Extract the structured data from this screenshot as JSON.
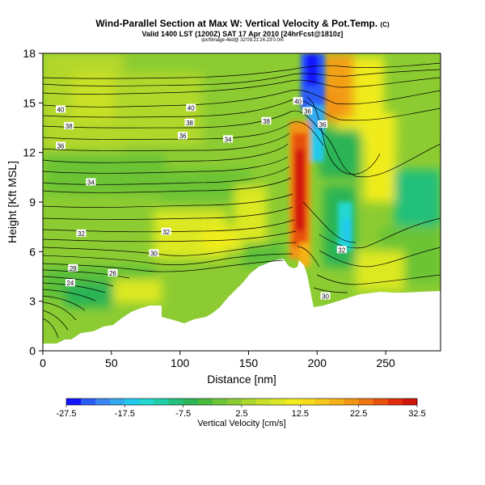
{
  "header": {
    "title": "Wind-Parallel Section at Max W: Vertical Velocity & Pot.Temp.",
    "title_mark": "(C)",
    "subtitle": "Valid 1400 LST (1200Z) SAT 17 Apr 2010 [24hrFcst@1810z]",
    "note": "ipx/filmage-4kd@ 32'09.21'24.23'0.0m"
  },
  "chart_data": {
    "type": "heatmap",
    "xlabel": "Distance [nm]",
    "ylabel": "Height [Kft MSL]",
    "xlim": [
      0,
      290
    ],
    "ylim": [
      0,
      18
    ],
    "x_ticks": [
      "0",
      "50",
      "100",
      "150",
      "200",
      "250"
    ],
    "x_tick_values": [
      0,
      50,
      100,
      150,
      200,
      250
    ],
    "y_ticks": [
      "0",
      "3",
      "6",
      "9",
      "12",
      "15",
      "18"
    ],
    "y_tick_values": [
      0,
      3,
      6,
      9,
      12,
      15,
      18
    ],
    "colorbar": {
      "label": "Vertical Velocity [cm/s]",
      "tick_labels": [
        "-27.5",
        "-17.5",
        "-7.5",
        "2.5",
        "12.5",
        "22.5",
        "32.5"
      ],
      "levels": [
        -27.5,
        -25,
        -22.5,
        -20,
        -17.5,
        -15,
        -12.5,
        -10,
        -7.5,
        -5,
        -2.5,
        0,
        2.5,
        5,
        7.5,
        10,
        12.5,
        15,
        17.5,
        20,
        22.5,
        25,
        27.5,
        30,
        32.5
      ],
      "colors": [
        "#1414ff",
        "#2a5cf8",
        "#3c86f2",
        "#33aaf0",
        "#22c8ee",
        "#22d8d0",
        "#20cfa8",
        "#22c07a",
        "#2cb455",
        "#4aba3e",
        "#6cc436",
        "#8ccc32",
        "#acd82c",
        "#c8e028",
        "#dce824",
        "#f0ec1e",
        "#f8dc1c",
        "#f8c81a",
        "#f6b018",
        "#f29414",
        "#ee7410",
        "#e8500c",
        "#e02c0a",
        "#d01408"
      ]
    },
    "contour_labels": [
      {
        "text": "40",
        "x": 13,
        "y": 14.6
      },
      {
        "text": "38",
        "x": 19,
        "y": 13.6
      },
      {
        "text": "36",
        "x": 13,
        "y": 12.4
      },
      {
        "text": "34",
        "x": 35,
        "y": 10.2
      },
      {
        "text": "40",
        "x": 108,
        "y": 14.7
      },
      {
        "text": "38",
        "x": 107,
        "y": 13.8
      },
      {
        "text": "36",
        "x": 102,
        "y": 13.0
      },
      {
        "text": "34",
        "x": 135,
        "y": 12.8
      },
      {
        "text": "38",
        "x": 163,
        "y": 13.9
      },
      {
        "text": "40",
        "x": 186,
        "y": 15.1
      },
      {
        "text": "36",
        "x": 193,
        "y": 14.5
      },
      {
        "text": "36",
        "x": 204,
        "y": 13.7
      },
      {
        "text": "32",
        "x": 28,
        "y": 7.1
      },
      {
        "text": "32",
        "x": 90,
        "y": 7.2
      },
      {
        "text": "30",
        "x": 81,
        "y": 5.9
      },
      {
        "text": "28",
        "x": 22,
        "y": 5.0
      },
      {
        "text": "26",
        "x": 51,
        "y": 4.7
      },
      {
        "text": "24",
        "x": 20,
        "y": 4.1
      },
      {
        "text": "32",
        "x": 218,
        "y": 6.1
      },
      {
        "text": "30",
        "x": 206,
        "y": 3.3
      }
    ]
  }
}
